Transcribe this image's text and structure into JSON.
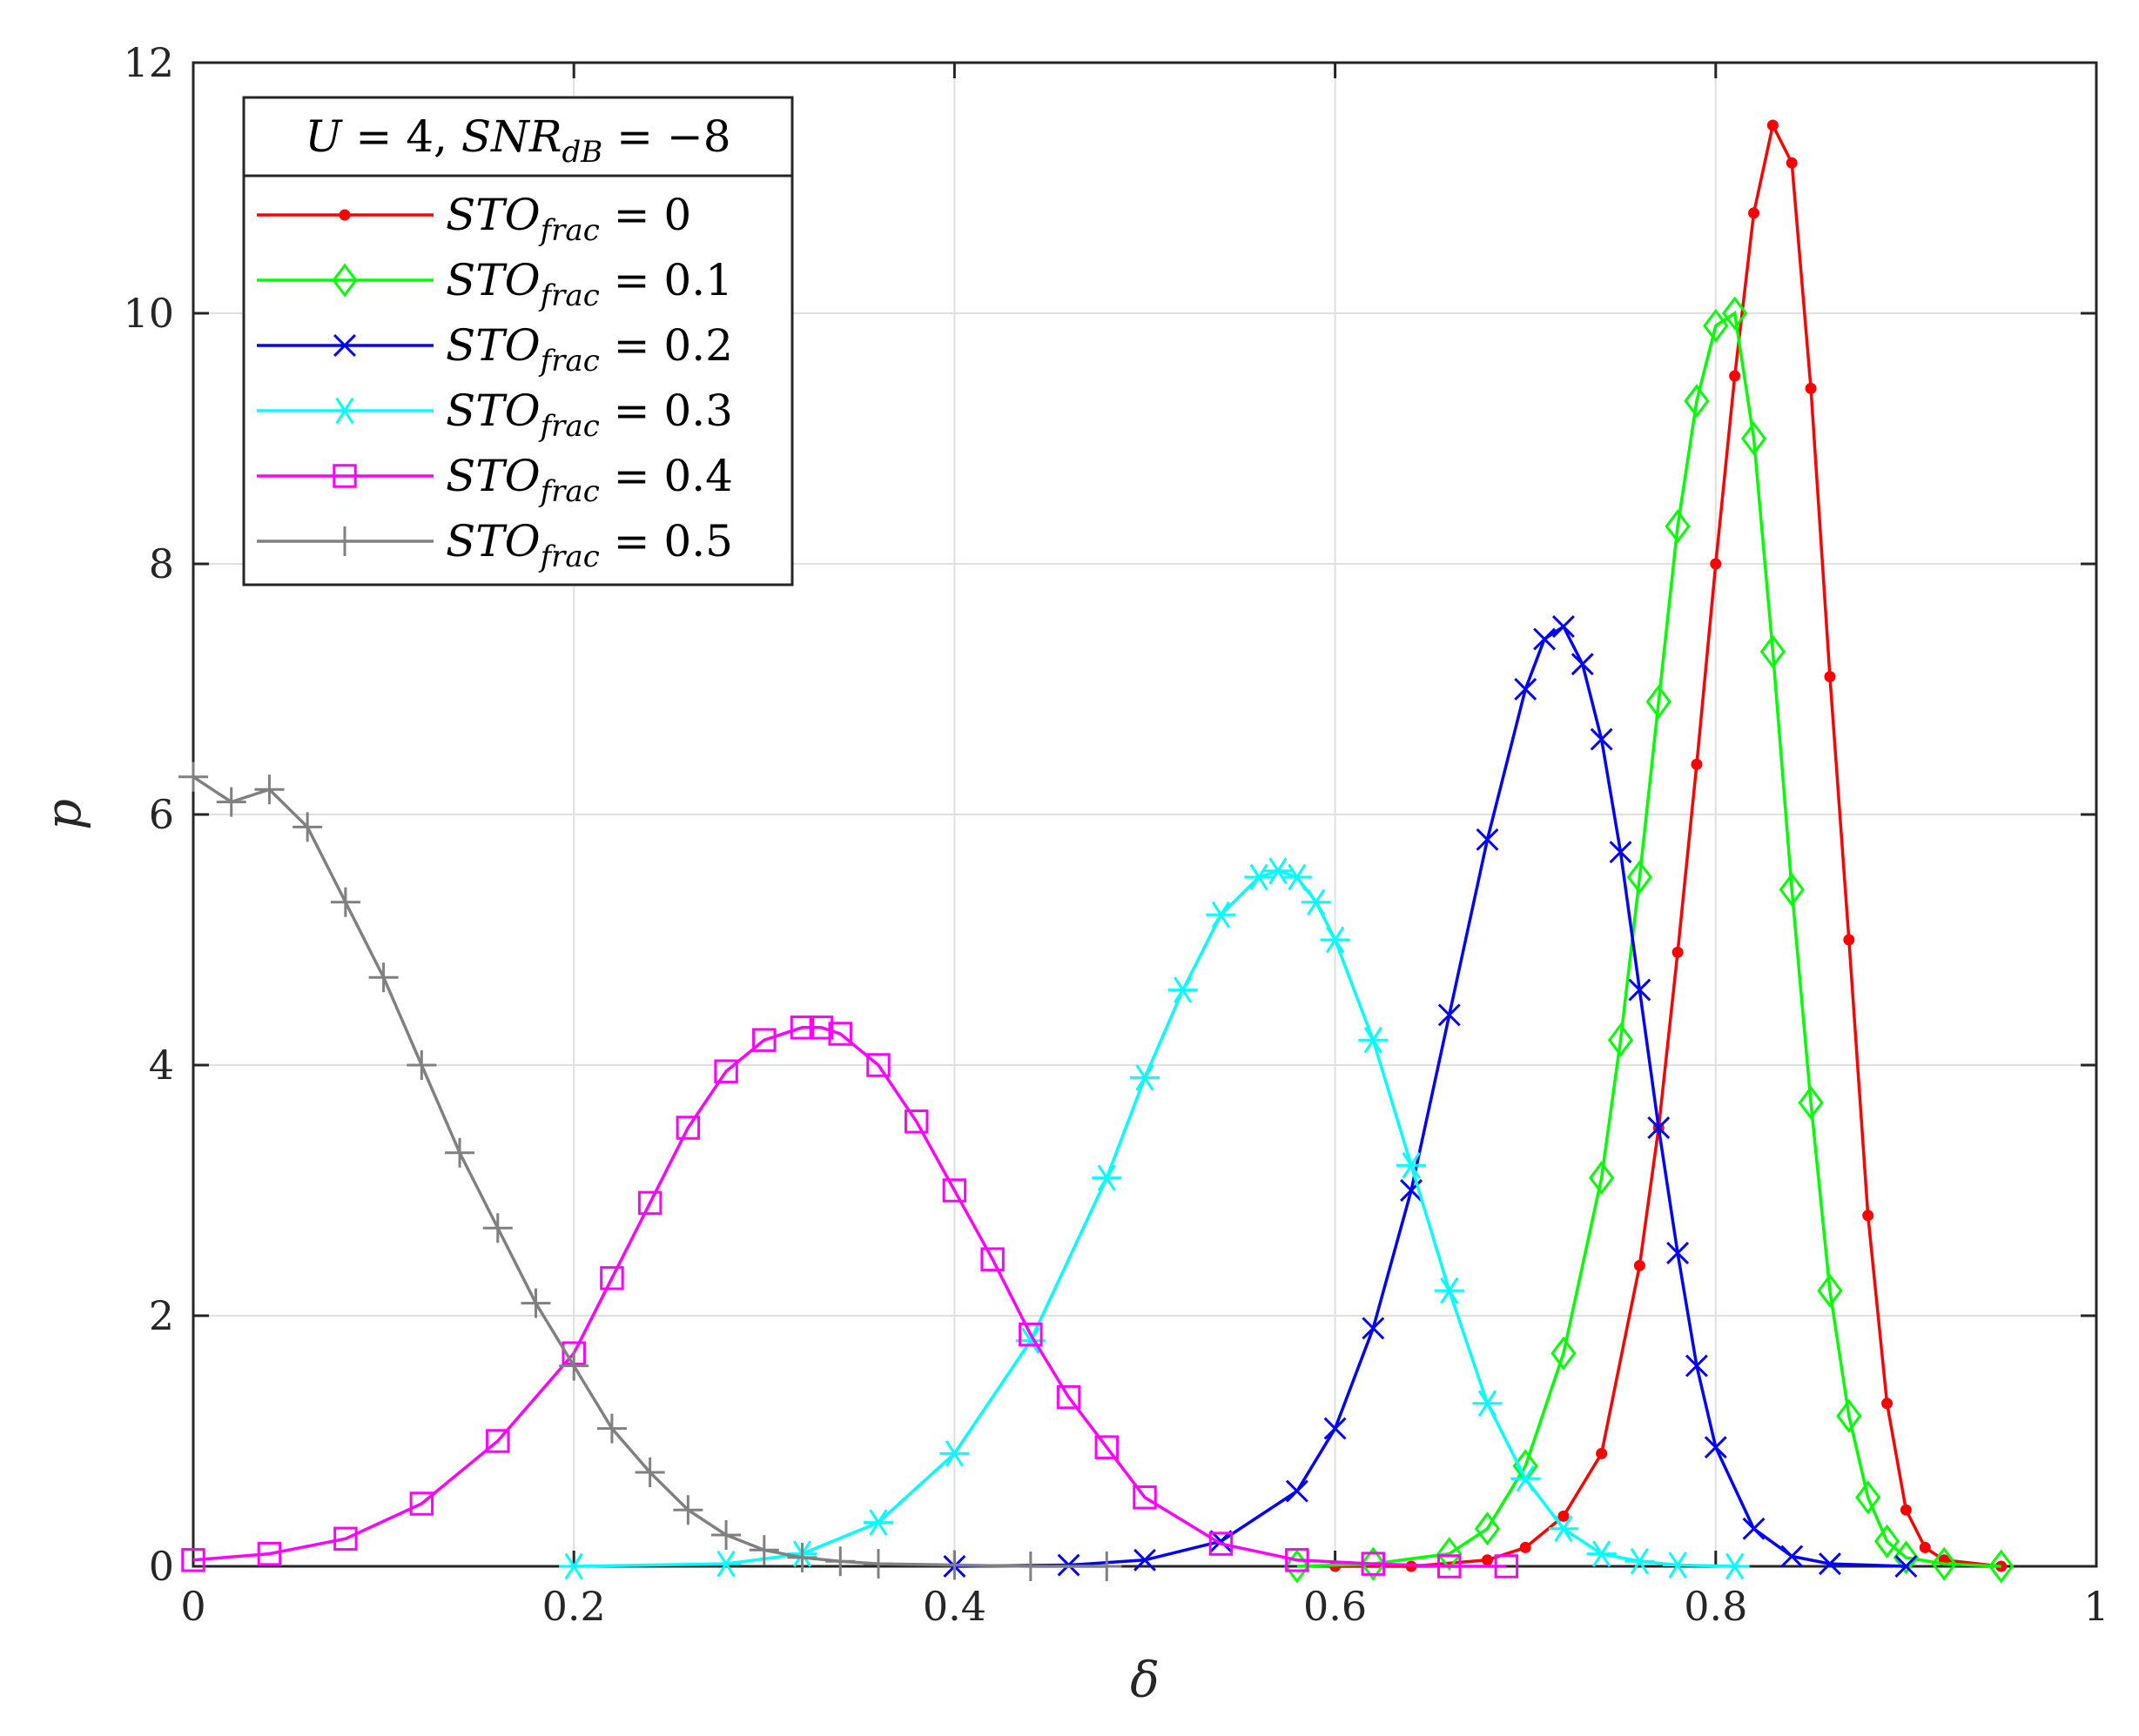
{
  "chart_data": {
    "type": "line",
    "title": "",
    "xlabel": "δ",
    "ylabel": "p",
    "xlim": [
      0,
      1
    ],
    "ylim": [
      0,
      12
    ],
    "xticks": [
      0,
      0.2,
      0.4,
      0.6,
      0.8,
      1
    ],
    "xtick_labels": [
      "0",
      "0.2",
      "0.4",
      "0.6",
      "0.8",
      "1"
    ],
    "yticks": [
      0,
      2,
      4,
      6,
      8,
      10,
      12
    ],
    "ytick_labels": [
      "0",
      "2",
      "4",
      "6",
      "8",
      "10",
      "12"
    ],
    "grid": true,
    "legend": {
      "placement": "top-left",
      "title": {
        "u_var": "U",
        "u_eq": " = 4, ",
        "snr_var": "SNR",
        "snr_sub": "dB",
        "snr_eq": " = −8"
      }
    },
    "series": [
      {
        "name": "STO_frac = 0",
        "var": "STO",
        "sub": "frac",
        "eq": " = 0",
        "color": "#ff0000",
        "marker": "dot",
        "x": [
          0.6,
          0.64,
          0.68,
          0.7,
          0.72,
          0.74,
          0.76,
          0.77,
          0.78,
          0.79,
          0.8,
          0.81,
          0.82,
          0.83,
          0.84,
          0.85,
          0.86,
          0.87,
          0.88,
          0.89,
          0.9,
          0.91,
          0.92,
          0.95
        ],
        "y": [
          0.0,
          0.0,
          0.05,
          0.15,
          0.4,
          0.9,
          2.4,
          3.5,
          4.9,
          6.4,
          8.0,
          9.5,
          10.8,
          11.5,
          11.2,
          9.4,
          7.1,
          5.0,
          2.8,
          1.3,
          0.45,
          0.15,
          0.05,
          0.0
        ]
      },
      {
        "name": "STO_frac = 0.1",
        "var": "STO",
        "sub": "frac",
        "eq": " = 0.1",
        "color": "#00ff00",
        "marker": "diamond",
        "x": [
          0.58,
          0.62,
          0.66,
          0.68,
          0.7,
          0.72,
          0.74,
          0.75,
          0.76,
          0.77,
          0.78,
          0.79,
          0.8,
          0.81,
          0.82,
          0.83,
          0.84,
          0.85,
          0.86,
          0.87,
          0.88,
          0.89,
          0.9,
          0.92,
          0.95
        ],
        "y": [
          0.0,
          0.02,
          0.1,
          0.3,
          0.8,
          1.7,
          3.1,
          4.2,
          5.5,
          6.9,
          8.3,
          9.3,
          9.9,
          10.0,
          9.0,
          7.3,
          5.4,
          3.7,
          2.2,
          1.2,
          0.55,
          0.2,
          0.07,
          0.02,
          0.0
        ]
      },
      {
        "name": "STO_frac = 0.2",
        "var": "STO",
        "sub": "frac",
        "eq": " = 0.2",
        "color": "#0000ff",
        "marker": "x",
        "x": [
          0.4,
          0.46,
          0.5,
          0.54,
          0.58,
          0.6,
          0.62,
          0.64,
          0.66,
          0.68,
          0.7,
          0.71,
          0.72,
          0.73,
          0.74,
          0.75,
          0.76,
          0.77,
          0.78,
          0.79,
          0.8,
          0.82,
          0.84,
          0.86,
          0.9
        ],
        "y": [
          0.0,
          0.01,
          0.05,
          0.2,
          0.6,
          1.1,
          1.9,
          3.0,
          4.4,
          5.8,
          7.0,
          7.4,
          7.5,
          7.2,
          6.6,
          5.7,
          4.6,
          3.5,
          2.5,
          1.6,
          0.95,
          0.3,
          0.08,
          0.02,
          0.0
        ]
      },
      {
        "name": "STO_frac = 0.3",
        "var": "STO",
        "sub": "frac",
        "eq": " = 0.3",
        "color": "#00ffff",
        "marker": "asterisk",
        "x": [
          0.2,
          0.28,
          0.32,
          0.36,
          0.4,
          0.44,
          0.48,
          0.5,
          0.52,
          0.54,
          0.56,
          0.57,
          0.58,
          0.59,
          0.6,
          0.62,
          0.64,
          0.66,
          0.68,
          0.7,
          0.72,
          0.74,
          0.76,
          0.78,
          0.81
        ],
        "y": [
          0.0,
          0.02,
          0.1,
          0.35,
          0.9,
          1.8,
          3.1,
          3.9,
          4.6,
          5.2,
          5.5,
          5.55,
          5.5,
          5.3,
          5.0,
          4.2,
          3.2,
          2.2,
          1.3,
          0.7,
          0.3,
          0.1,
          0.04,
          0.01,
          0.0
        ]
      },
      {
        "name": "STO_frac = 0.4",
        "var": "STO",
        "sub": "frac",
        "eq": " = 0.4",
        "color": "#ff00ff",
        "marker": "square",
        "x": [
          0.0,
          0.04,
          0.08,
          0.12,
          0.16,
          0.2,
          0.22,
          0.24,
          0.26,
          0.28,
          0.3,
          0.32,
          0.33,
          0.34,
          0.36,
          0.38,
          0.4,
          0.42,
          0.44,
          0.46,
          0.48,
          0.5,
          0.54,
          0.58,
          0.62,
          0.66,
          0.69
        ],
        "y": [
          0.05,
          0.1,
          0.22,
          0.5,
          1.0,
          1.7,
          2.3,
          2.9,
          3.5,
          3.95,
          4.2,
          4.3,
          4.3,
          4.25,
          4.0,
          3.55,
          3.0,
          2.45,
          1.85,
          1.35,
          0.95,
          0.55,
          0.18,
          0.05,
          0.02,
          0.0,
          0.0
        ]
      },
      {
        "name": "STO_frac = 0.5",
        "var": "STO",
        "sub": "frac",
        "eq": " = 0.5",
        "color": "#808080",
        "marker": "plus",
        "x": [
          0.0,
          0.02,
          0.04,
          0.06,
          0.08,
          0.1,
          0.12,
          0.14,
          0.16,
          0.18,
          0.2,
          0.22,
          0.24,
          0.26,
          0.28,
          0.3,
          0.32,
          0.34,
          0.36,
          0.4,
          0.44,
          0.48
        ],
        "y": [
          6.3,
          6.1,
          6.2,
          5.9,
          5.3,
          4.7,
          4.0,
          3.3,
          2.7,
          2.1,
          1.6,
          1.1,
          0.75,
          0.45,
          0.25,
          0.13,
          0.07,
          0.04,
          0.02,
          0.01,
          0.0,
          0.0
        ]
      }
    ]
  }
}
